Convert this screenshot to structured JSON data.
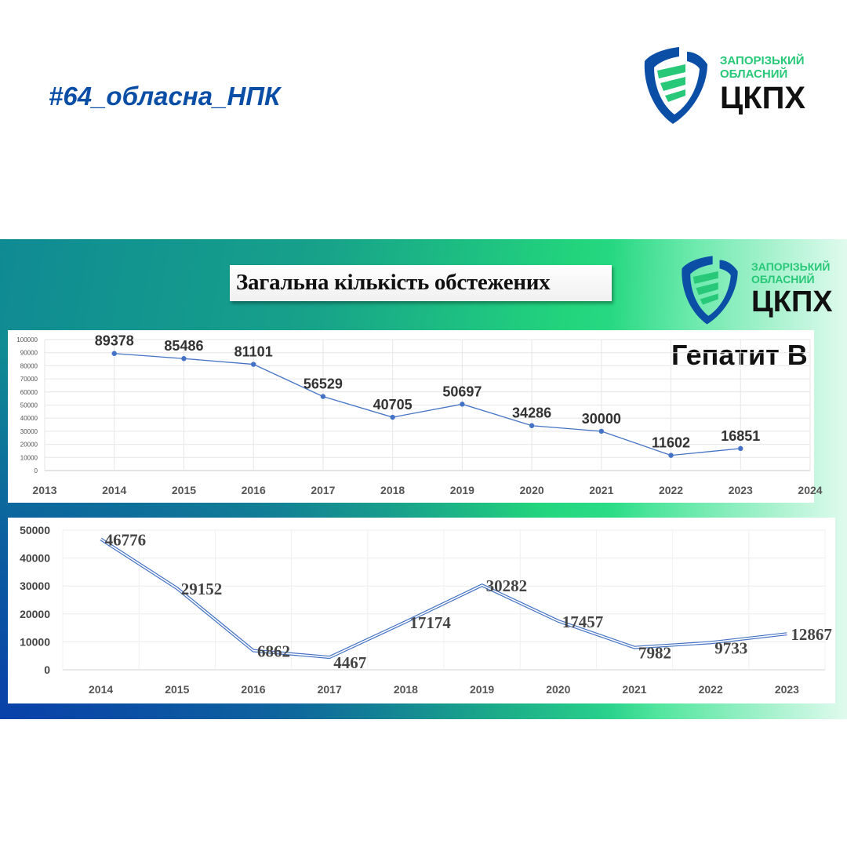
{
  "hashtag": "#64_обласна_НПК",
  "logo": {
    "line1": "ЗАПОРІЗЬКИЙ",
    "line2": "ОБЛАСНИЙ",
    "line3": "ЦКПХ",
    "colors": {
      "blue": "#0b4ea6",
      "green": "#27c878"
    }
  },
  "panel": {
    "title": "Загальна кількість обстежених",
    "disease_label": "Гепатит В"
  },
  "chart_data": [
    {
      "type": "line",
      "x": [
        2014,
        2015,
        2016,
        2017,
        2018,
        2019,
        2020,
        2021,
        2022,
        2023
      ],
      "values": [
        89378,
        85486,
        81101,
        56529,
        40705,
        50697,
        34286,
        30000,
        11602,
        16851
      ],
      "xlim": [
        2013,
        2024
      ],
      "xticks": [
        2013,
        2014,
        2015,
        2016,
        2017,
        2018,
        2019,
        2020,
        2021,
        2022,
        2023,
        2024
      ],
      "ylim": [
        0,
        100000
      ],
      "yticks": [
        0,
        10000,
        20000,
        30000,
        40000,
        50000,
        60000,
        70000,
        80000,
        90000,
        100000
      ],
      "markers": true,
      "data_labels": true,
      "grid": true,
      "color": "#4472c4"
    },
    {
      "type": "line",
      "categories": [
        "2014",
        "2015",
        "2016",
        "2017",
        "2018",
        "2019",
        "2020",
        "2021",
        "2022",
        "2023"
      ],
      "values": [
        46776,
        29152,
        6862,
        4467,
        17174,
        30282,
        17457,
        7982,
        9733,
        12867
      ],
      "ylim": [
        0,
        50000
      ],
      "yticks": [
        0,
        10000,
        20000,
        30000,
        40000,
        50000
      ],
      "line_style": "double",
      "data_labels": true,
      "grid": true,
      "color": "#4472c4"
    }
  ]
}
